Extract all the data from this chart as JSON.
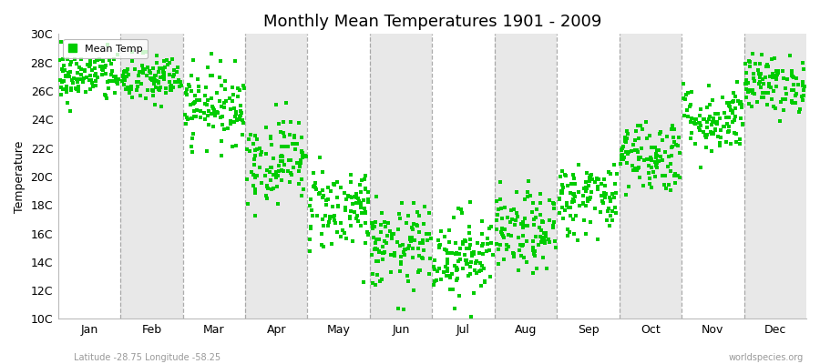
{
  "title": "Monthly Mean Temperatures 1901 - 2009",
  "ylabel": "Temperature",
  "xlabel_months": [
    "Jan",
    "Feb",
    "Mar",
    "Apr",
    "May",
    "Jun",
    "Jul",
    "Aug",
    "Sep",
    "Oct",
    "Nov",
    "Dec"
  ],
  "ytick_labels": [
    "10C",
    "12C",
    "14C",
    "16C",
    "18C",
    "20C",
    "22C",
    "24C",
    "26C",
    "28C",
    "30C"
  ],
  "ytick_values": [
    10,
    12,
    14,
    16,
    18,
    20,
    22,
    24,
    26,
    28,
    30
  ],
  "ylim": [
    10,
    30
  ],
  "dot_color": "#00cc00",
  "dot_size": 5,
  "background_color": "#ffffff",
  "band_colors": [
    "#ffffff",
    "#e8e8e8"
  ],
  "subtitle": "Latitude -28.75 Longitude -58.25",
  "watermark": "worldspecies.org",
  "legend_label": "Mean Temp",
  "n_years": 109,
  "monthly_means": [
    27.0,
    26.8,
    25.0,
    21.2,
    17.8,
    15.0,
    14.5,
    16.0,
    18.5,
    21.5,
    24.0,
    26.5
  ],
  "monthly_stds": [
    0.9,
    0.9,
    1.3,
    1.5,
    1.5,
    1.5,
    1.5,
    1.4,
    1.3,
    1.3,
    1.2,
    1.0
  ],
  "title_fontsize": 13,
  "axis_fontsize": 9,
  "ylabel_fontsize": 9
}
